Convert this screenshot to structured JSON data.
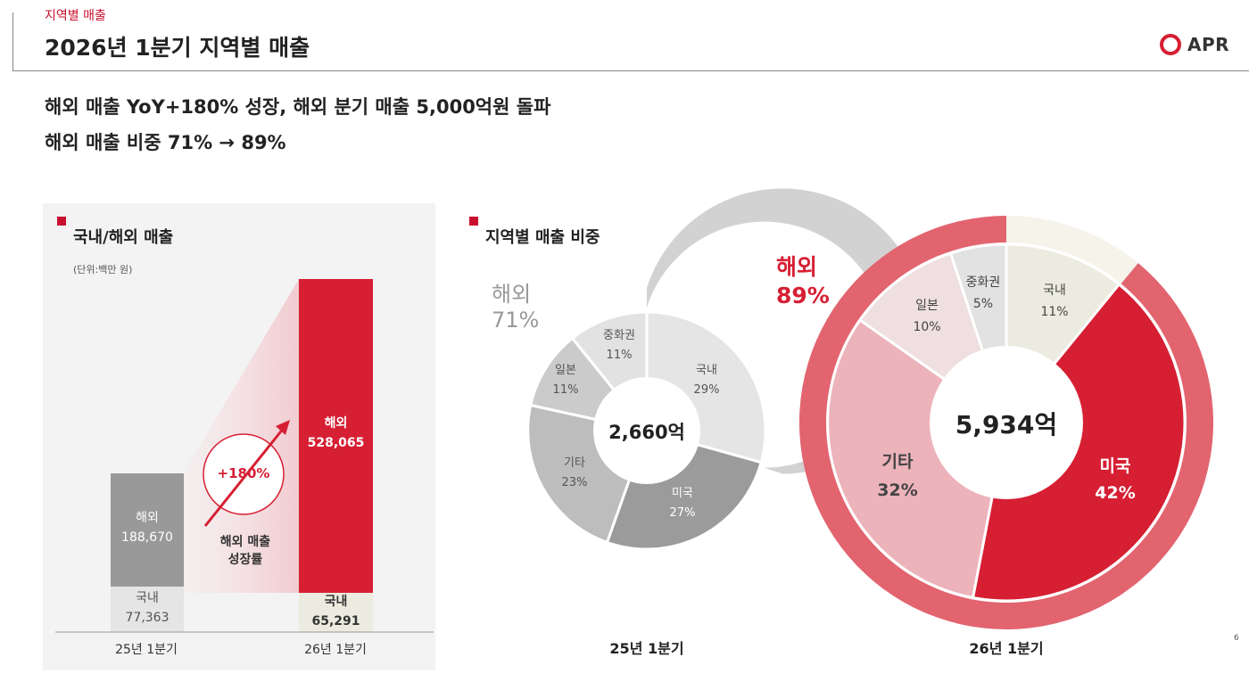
{
  "header": {
    "section_tag": "지역별 매출",
    "title": "2026년 1분기 지역별 매출",
    "logo_text": "APR"
  },
  "headlines": [
    "해외 매출 YoY+180% 성장, 해외 분기 매출 5,000억원 돌파",
    "해외 매출 비중 71% → 89%"
  ],
  "bar_section": {
    "title": "국내/해외 매출",
    "unit": "(단위:백만 원)",
    "growth_value": "+180%",
    "growth_label_line1": "해외 매출",
    "growth_label_line2": "성장률",
    "bars": [
      {
        "period": "25년 1분기",
        "overseas_label": "해외",
        "overseas_value": "188,670",
        "domestic_label": "국내",
        "domestic_value": "77,363"
      },
      {
        "period": "26년 1분기",
        "overseas_label": "해외",
        "overseas_value": "528,065",
        "domestic_label": "국내",
        "domestic_value": "65,291"
      }
    ]
  },
  "pie_section": {
    "title": "지역별 매출 비중",
    "pie_2025": {
      "period": "25년 1분기",
      "total": "2,660억",
      "overseas_label": "해외",
      "overseas_pct": "71%",
      "slices": [
        {
          "name": "국내",
          "pct": "29%"
        },
        {
          "name": "미국",
          "pct": "27%"
        },
        {
          "name": "기타",
          "pct": "23%"
        },
        {
          "name": "일본",
          "pct": "11%"
        },
        {
          "name": "중화권",
          "pct": "11%"
        }
      ]
    },
    "pie_2026": {
      "period": "26년 1분기",
      "total": "5,934억",
      "overseas_label": "해외",
      "overseas_pct": "89%",
      "slices": [
        {
          "name": "국내",
          "pct": "11%"
        },
        {
          "name": "미국",
          "pct": "42%"
        },
        {
          "name": "기타",
          "pct": "32%"
        },
        {
          "name": "일본",
          "pct": "10%"
        },
        {
          "name": "중화권",
          "pct": "5%"
        }
      ]
    }
  },
  "chart_data": [
    {
      "type": "bar",
      "title": "국내/해외 매출",
      "categories": [
        "25년 1분기",
        "26년 1분기"
      ],
      "series": [
        {
          "name": "국내",
          "values": [
            77363,
            65291
          ]
        },
        {
          "name": "해외",
          "values": [
            188670,
            528065
          ]
        }
      ]
    },
    {
      "type": "pie",
      "title": "25년 1분기",
      "categories": [
        "국내",
        "미국",
        "기타",
        "일본",
        "중화권"
      ],
      "values": [
        29,
        27,
        23,
        11,
        11
      ]
    },
    {
      "type": "pie",
      "title": "26년 1분기",
      "categories": [
        "국내",
        "미국",
        "기타",
        "일본",
        "중화권"
      ],
      "values": [
        11,
        42,
        32,
        10,
        5
      ]
    }
  ],
  "colors": {
    "brand_red": "#d61f33",
    "dark_gray": "#999999",
    "light_gray": "#dcdcdc",
    "pink": "#ecb3ba",
    "pale_pink": "#efdfe1",
    "cream": "#ecebdf",
    "outer_ring_red": "#e2646f"
  },
  "page_number": "6"
}
